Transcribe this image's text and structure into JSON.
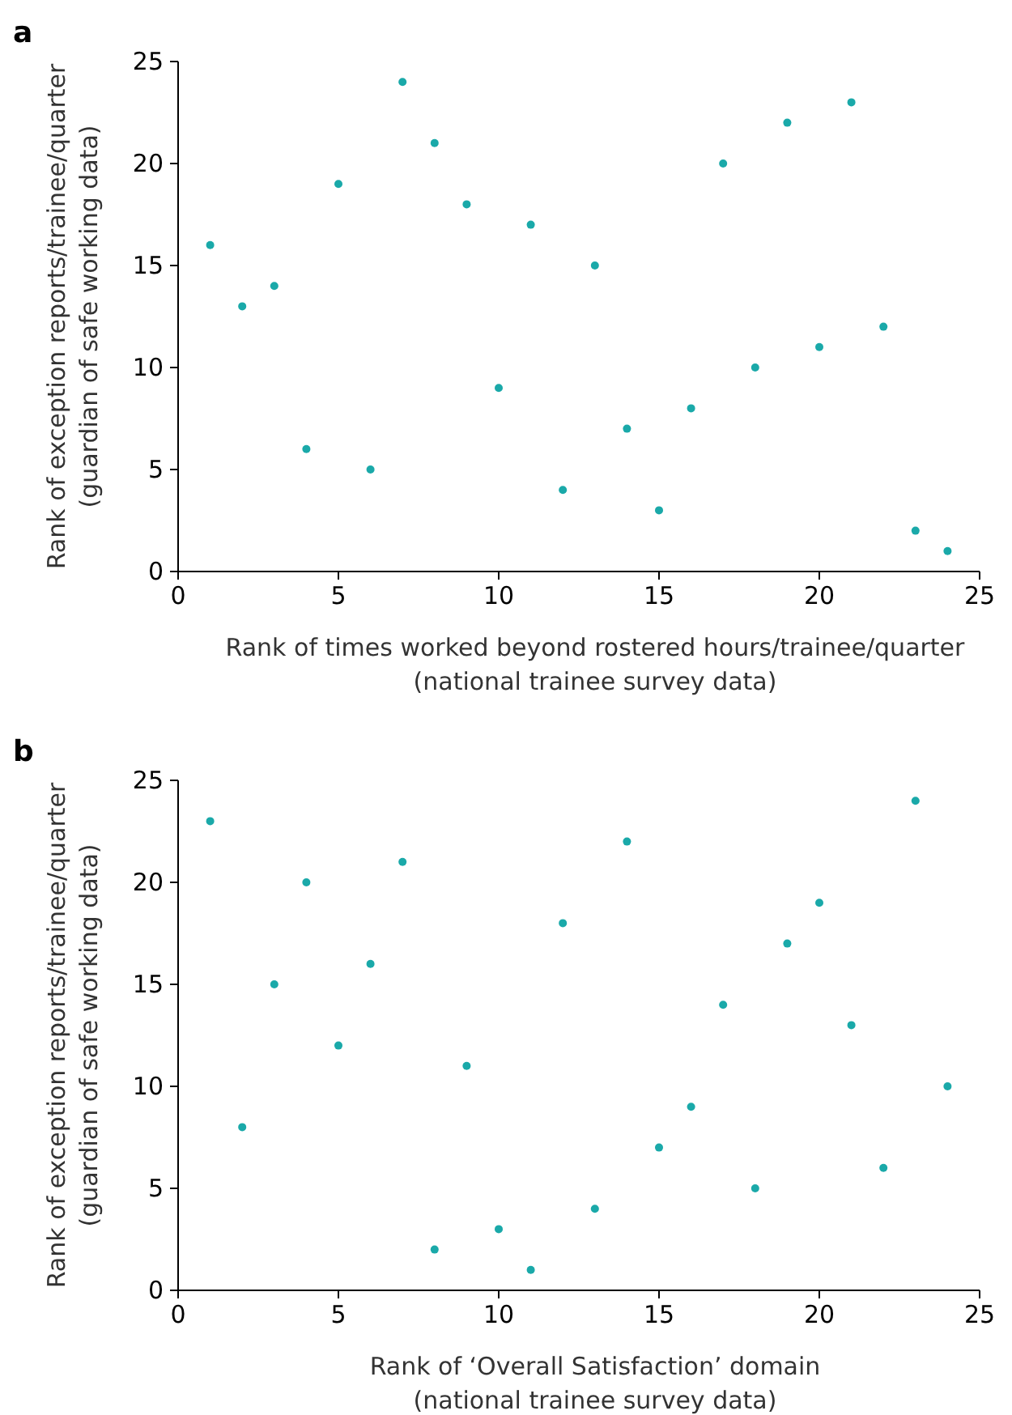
{
  "chart_data": [
    {
      "type": "scatter",
      "title": "a",
      "xlabel": "Rank of times worked beyond rostered hours/trainee/quarter\n(national trainee survey data)",
      "ylabel": "Rank of exception reports/trainee/quarter\n(guardian of safe working data)",
      "xlim": [
        0,
        25
      ],
      "ylim": [
        0,
        25
      ],
      "xticks": [
        0,
        5,
        10,
        15,
        20,
        25
      ],
      "yticks": [
        0,
        5,
        10,
        15,
        20,
        25
      ],
      "grid": false,
      "marker": "circle",
      "series": [
        {
          "color": "#1aa9a9",
          "x": [
            1,
            2,
            3,
            4,
            5,
            6,
            7,
            8,
            9,
            10,
            11,
            12,
            13,
            14,
            15,
            16,
            17,
            18,
            19,
            20,
            21,
            22,
            23,
            24
          ],
          "values": [
            16,
            13,
            14,
            6,
            19,
            5,
            24,
            21,
            18,
            9,
            17,
            4,
            15,
            7,
            3,
            8,
            20,
            10,
            22,
            11,
            23,
            12,
            2,
            1
          ]
        }
      ]
    },
    {
      "type": "scatter",
      "title": "b",
      "xlabel": "Rank of ‘Overall Satisfaction’ domain\n(national trainee survey data)",
      "ylabel": "Rank of exception reports/trainee/quarter\n(guardian of safe working data)",
      "xlim": [
        0,
        25
      ],
      "ylim": [
        0,
        25
      ],
      "xticks": [
        0,
        5,
        10,
        15,
        20,
        25
      ],
      "yticks": [
        0,
        5,
        10,
        15,
        20,
        25
      ],
      "grid": false,
      "marker": "circle",
      "series": [
        {
          "color": "#1aa9a9",
          "x": [
            1,
            2,
            3,
            4,
            5,
            6,
            7,
            8,
            9,
            10,
            11,
            12,
            13,
            14,
            15,
            16,
            17,
            18,
            19,
            20,
            21,
            22,
            23,
            24
          ],
          "values": [
            23,
            8,
            15,
            20,
            12,
            16,
            21,
            2,
            11,
            3,
            1,
            18,
            4,
            22,
            7,
            9,
            14,
            5,
            17,
            19,
            13,
            6,
            24,
            10
          ]
        }
      ]
    }
  ]
}
